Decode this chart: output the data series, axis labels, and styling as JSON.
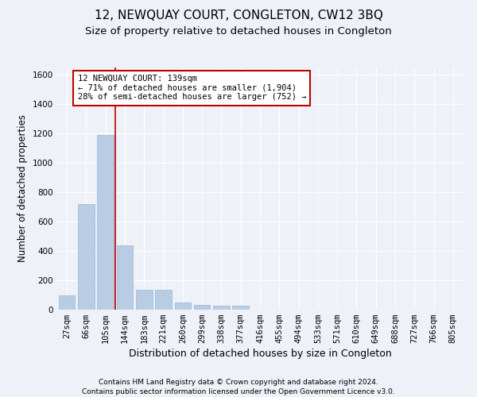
{
  "title": "12, NEWQUAY COURT, CONGLETON, CW12 3BQ",
  "subtitle": "Size of property relative to detached houses in Congleton",
  "xlabel": "Distribution of detached houses by size in Congleton",
  "ylabel": "Number of detached properties",
  "categories": [
    "27sqm",
    "66sqm",
    "105sqm",
    "144sqm",
    "183sqm",
    "221sqm",
    "260sqm",
    "299sqm",
    "338sqm",
    "377sqm",
    "416sqm",
    "455sqm",
    "494sqm",
    "533sqm",
    "571sqm",
    "610sqm",
    "649sqm",
    "688sqm",
    "727sqm",
    "766sqm",
    "805sqm"
  ],
  "values": [
    100,
    720,
    1190,
    440,
    135,
    135,
    50,
    30,
    25,
    25,
    0,
    0,
    0,
    0,
    0,
    0,
    0,
    0,
    0,
    0,
    0
  ],
  "bar_color": "#b8cce4",
  "bar_edge_color": "#9ab5d4",
  "vline_x_index": 2,
  "vline_color": "#c00000",
  "annotation_line1": "12 NEWQUAY COURT: 139sqm",
  "annotation_line2": "← 71% of detached houses are smaller (1,904)",
  "annotation_line3": "28% of semi-detached houses are larger (752) →",
  "annotation_box_color": "#c00000",
  "ylim": [
    0,
    1650
  ],
  "yticks": [
    0,
    200,
    400,
    600,
    800,
    1000,
    1200,
    1400,
    1600
  ],
  "footer_line1": "Contains HM Land Registry data © Crown copyright and database right 2024.",
  "footer_line2": "Contains public sector information licensed under the Open Government Licence v3.0.",
  "background_color": "#eef2f8",
  "grid_color": "#ffffff",
  "title_fontsize": 11,
  "subtitle_fontsize": 9.5,
  "tick_fontsize": 7.5,
  "ylabel_fontsize": 8.5,
  "xlabel_fontsize": 9,
  "footer_fontsize": 6.5
}
